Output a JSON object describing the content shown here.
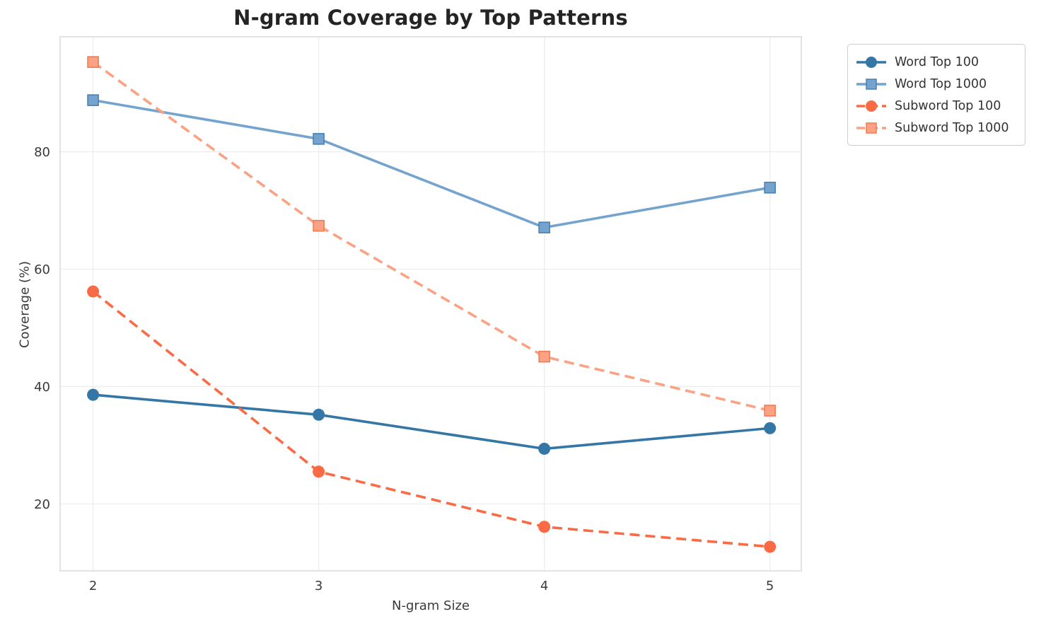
{
  "chart_data": {
    "type": "line",
    "title": "N-gram Coverage by Top Patterns",
    "xlabel": "N-gram Size",
    "ylabel": "Coverage (%)",
    "x": [
      2,
      3,
      4,
      5
    ],
    "xticks": [
      2,
      3,
      4,
      5
    ],
    "yticks": [
      20,
      40,
      60,
      80
    ],
    "xlim": [
      1.854,
      5.139
    ],
    "ylim": [
      8.6,
      99.6
    ],
    "grid": true,
    "legend_position": "outside-upper-right",
    "series": [
      {
        "name": "Word Top 100",
        "values": [
          38.6,
          35.2,
          29.4,
          32.9
        ],
        "color": "#3476A6",
        "marker": "circle",
        "line": "solid"
      },
      {
        "name": "Word Top 1000",
        "values": [
          88.8,
          82.2,
          67.1,
          73.9
        ],
        "color": "#74A3CD",
        "marker_edge": "#4A80B5",
        "marker": "square",
        "line": "solid"
      },
      {
        "name": "Subword Top 100",
        "values": [
          56.2,
          25.5,
          16.1,
          12.7
        ],
        "color": "#FA6A44",
        "marker": "circle",
        "line": "dashed"
      },
      {
        "name": "Subword Top 1000",
        "values": [
          95.3,
          67.4,
          45.1,
          35.9
        ],
        "color": "#FBA284",
        "marker_edge": "#F07B52",
        "marker": "square",
        "line": "dashed"
      }
    ],
    "style": {
      "grid_color": "#ECECEC",
      "spine_color": "#DADADA",
      "tick_label_color": "#3a3a3a",
      "title_color": "#242424"
    }
  }
}
